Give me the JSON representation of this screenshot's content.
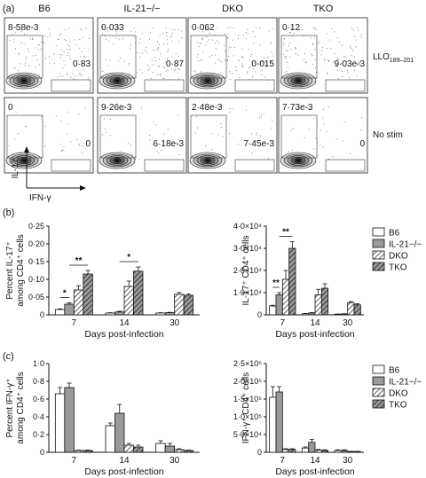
{
  "panel_a": {
    "letter": "(a)",
    "columns": [
      "B6",
      "IL-21−/−",
      "DKO",
      "TKO"
    ],
    "rows": [
      {
        "label": "LLO",
        "label_sub": "189–201",
        "q1": [
          "8·58e-3",
          "0·033",
          "0·062",
          "0·12"
        ],
        "q4": [
          "0·83",
          "0·87",
          "0·015",
          "9·03e-3"
        ]
      },
      {
        "label": "No stim",
        "label_sub": "",
        "q1": [
          "0",
          "9·26e-3",
          "2·48e-3",
          "7·73e-3"
        ],
        "q4": [
          "0",
          "6·18e-3",
          "7·45e-3",
          "0"
        ]
      }
    ],
    "y_axis": "IL-17",
    "x_axis": "IFN-γ"
  },
  "chart_data": [
    {
      "type": "bar",
      "panel": "(b)",
      "xlabel": "Days post-infection",
      "ylabel_lines": [
        "Percent IL-17⁺",
        "among CD4⁺ cells"
      ],
      "categories": [
        "7",
        "14",
        "30"
      ],
      "ylim": [
        0,
        0.25
      ],
      "yticks": [
        "0",
        "0·05",
        "0·10",
        "0·15",
        "0·20",
        "0·25"
      ],
      "series": [
        {
          "name": "B6",
          "values": [
            0.015,
            0.005,
            0.005
          ],
          "errors": [
            0.002,
            0.001,
            0.001
          ]
        },
        {
          "name": "IL-21−/−",
          "values": [
            0.03,
            0.008,
            0.006
          ],
          "errors": [
            0.004,
            0.002,
            0.001
          ]
        },
        {
          "name": "DKO",
          "values": [
            0.07,
            0.08,
            0.058
          ],
          "errors": [
            0.012,
            0.015,
            0.005
          ]
        },
        {
          "name": "TKO",
          "values": [
            0.115,
            0.123,
            0.055
          ],
          "errors": [
            0.01,
            0.012,
            0.004
          ]
        }
      ],
      "annotations": [
        {
          "text": "*",
          "category": "7",
          "between": [
            0,
            1
          ]
        },
        {
          "text": "**",
          "category": "7",
          "between": [
            1,
            3
          ]
        },
        {
          "text": "*",
          "category": "14",
          "between": [
            1,
            3
          ]
        }
      ]
    },
    {
      "type": "bar",
      "panel": "(b)",
      "xlabel": "Days post-infection",
      "ylabel": "IL-17⁺ CD4⁺ cells",
      "categories": [
        "7",
        "14",
        "30"
      ],
      "ylim": [
        0,
        40000
      ],
      "yticks": [
        "0",
        "1·0×10⁴",
        "2·0×10⁴",
        "3·0×10⁴",
        "4·0×10⁴"
      ],
      "legend": [
        "B6",
        "IL-21−/−",
        "DKO",
        "TKO"
      ],
      "series": [
        {
          "name": "B6",
          "values": [
            4000,
            500,
            300
          ],
          "errors": [
            300,
            100,
            50
          ]
        },
        {
          "name": "IL-21−/−",
          "values": [
            9000,
            800,
            400
          ],
          "errors": [
            1000,
            200,
            100
          ]
        },
        {
          "name": "DKO",
          "values": [
            16000,
            9000,
            5500
          ],
          "errors": [
            4000,
            2500,
            500
          ]
        },
        {
          "name": "TKO",
          "values": [
            30000,
            12000,
            4500
          ],
          "errors": [
            3000,
            2000,
            500
          ]
        }
      ],
      "annotations": [
        {
          "text": "**",
          "category": "7",
          "between": [
            0,
            1
          ]
        },
        {
          "text": "**",
          "category": "7",
          "between": [
            1,
            3
          ]
        }
      ]
    },
    {
      "type": "bar",
      "panel": "(c)",
      "xlabel": "Days post-infection",
      "ylabel_lines": [
        "Percent IFN-γ⁺",
        "among CD4⁺ cells"
      ],
      "categories": [
        "7",
        "14",
        "30"
      ],
      "ylim": [
        0,
        1.0
      ],
      "yticks": [
        "0",
        "0·2",
        "0·4",
        "0·6",
        "0·8",
        "1·0"
      ],
      "series": [
        {
          "name": "B6",
          "values": [
            0.66,
            0.3,
            0.1
          ],
          "errors": [
            0.07,
            0.03,
            0.03
          ]
        },
        {
          "name": "IL-21−/−",
          "values": [
            0.73,
            0.44,
            0.07
          ],
          "errors": [
            0.05,
            0.1,
            0.03
          ]
        },
        {
          "name": "DKO",
          "values": [
            0.02,
            0.08,
            0.03
          ],
          "errors": [
            0.005,
            0.02,
            0.01
          ]
        },
        {
          "name": "TKO",
          "values": [
            0.02,
            0.06,
            0.02
          ],
          "errors": [
            0.005,
            0.02,
            0.005
          ]
        }
      ]
    },
    {
      "type": "bar",
      "panel": "(c)",
      "xlabel": "Days post-infection",
      "ylabel": "IFN-γ⁺ CD4⁺ cells",
      "categories": [
        "7",
        "14",
        "30"
      ],
      "ylim": [
        0,
        250000
      ],
      "yticks": [
        "0",
        "5·0×10⁴",
        "1·0×10⁵",
        "1·5×10⁵",
        "2·0×10⁵",
        "2·5×10⁵"
      ],
      "legend": [
        "B6",
        "IL-21−/−",
        "DKO",
        "TKO"
      ],
      "series": [
        {
          "name": "B6",
          "values": [
            155000,
            12000,
            5000
          ],
          "errors": [
            30000,
            3000,
            2000
          ]
        },
        {
          "name": "IL-21−/−",
          "values": [
            170000,
            28000,
            5000
          ],
          "errors": [
            15000,
            8000,
            2000
          ]
        },
        {
          "name": "DKO",
          "values": [
            8000,
            6000,
            2000
          ],
          "errors": [
            2000,
            2000,
            500
          ]
        },
        {
          "name": "TKO",
          "values": [
            8000,
            5000,
            2000
          ],
          "errors": [
            2000,
            2000,
            500
          ]
        }
      ]
    }
  ]
}
